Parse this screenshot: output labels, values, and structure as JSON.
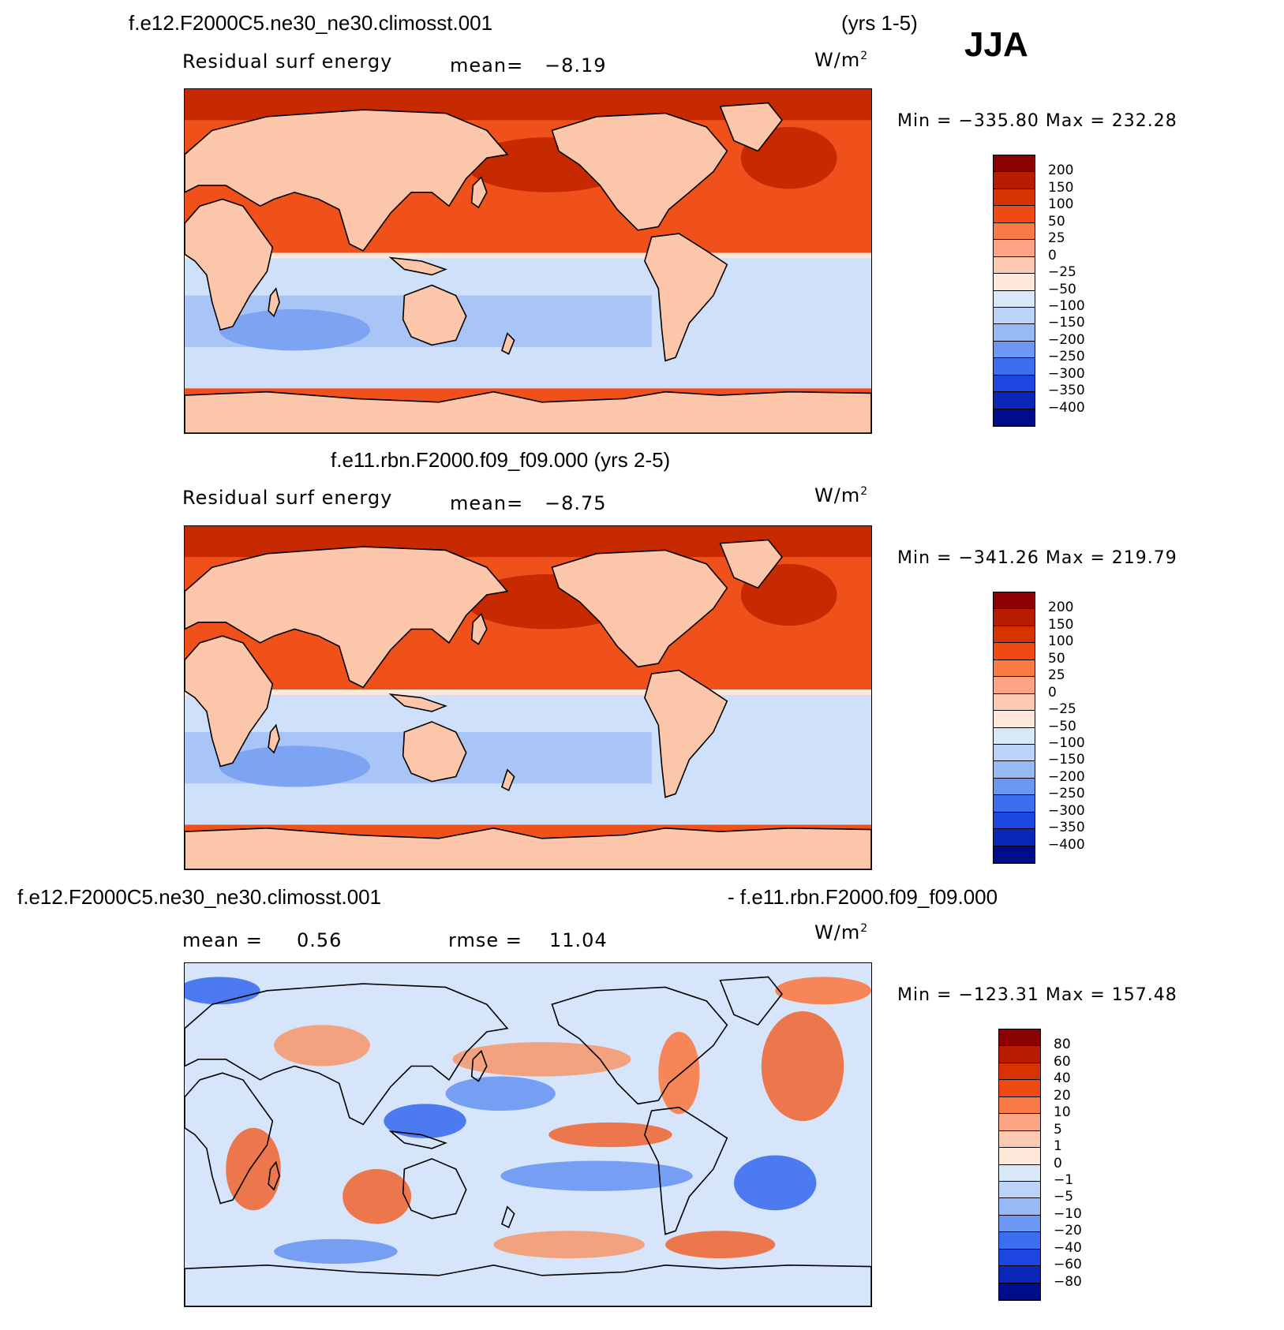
{
  "season": "JJA",
  "panels": [
    {
      "title_left": "f.e12.F2000C5.ne30_ne30.climosst.001",
      "title_right": "(yrs 1-5)",
      "variable": "Residual surf energy",
      "stat_label": "mean=",
      "stat_value": "−8.19",
      "units_base": "W/m",
      "units_exp": "2",
      "minmax": "Min = −335.80 Max = 232.28",
      "palette": "abs"
    },
    {
      "title_center": "f.e11.rbn.F2000.f09_f09.000 (yrs 2-5)",
      "variable": "Residual surf energy",
      "stat_label": "mean=",
      "stat_value": "−8.75",
      "units_base": "W/m",
      "units_exp": "2",
      "minmax": "Min = −341.26 Max = 219.79",
      "palette": "abs"
    },
    {
      "title_left": "f.e12.F2000C5.ne30_ne30.climosst.001",
      "title_right": "- f.e11.rbn.F2000.f09_f09.000",
      "mean_label": "mean =",
      "mean_value": "0.56",
      "rmse_label": "rmse =",
      "rmse_value": "11.04",
      "units_base": "W/m",
      "units_exp": "2",
      "minmax": "Min = −123.31 Max = 157.48",
      "palette": "diff"
    }
  ],
  "colorbars": {
    "abs": {
      "levels": [
        "200",
        "150",
        "100",
        "50",
        "25",
        "0",
        "−25",
        "−50",
        "−100",
        "−150",
        "−200",
        "−250",
        "−300",
        "−350",
        "−400"
      ],
      "colors": [
        "#8b0000",
        "#b81c00",
        "#d63300",
        "#f04a14",
        "#fa7a45",
        "#fca483",
        "#fccab0",
        "#fde8da",
        "#d9e8f8",
        "#bcd3f7",
        "#97b9f5",
        "#6c97f2",
        "#3c6ef0",
        "#1e46e0",
        "#0a28b8",
        "#000d8a"
      ]
    },
    "diff": {
      "levels": [
        "80",
        "60",
        "40",
        "20",
        "10",
        "5",
        "1",
        "0",
        "−1",
        "−5",
        "−10",
        "−20",
        "−40",
        "−60",
        "−80"
      ],
      "colors": [
        "#8b0000",
        "#b81c00",
        "#d63300",
        "#f04a14",
        "#fa7a45",
        "#fca483",
        "#fccab0",
        "#fde8da",
        "#d9e8f8",
        "#bcd3f7",
        "#97b9f5",
        "#6c97f2",
        "#3c6ef0",
        "#1e46e0",
        "#0a28b8",
        "#000d8a"
      ]
    }
  },
  "colors": {
    "land": "#fcc6ab",
    "ocean_warm": "#f0501a",
    "ocean_hot": "#c72a00",
    "ocean_cool": "#cfe0fa",
    "ocean_cold": "#a9c5f7",
    "diff_base": "#d6e5fa"
  }
}
